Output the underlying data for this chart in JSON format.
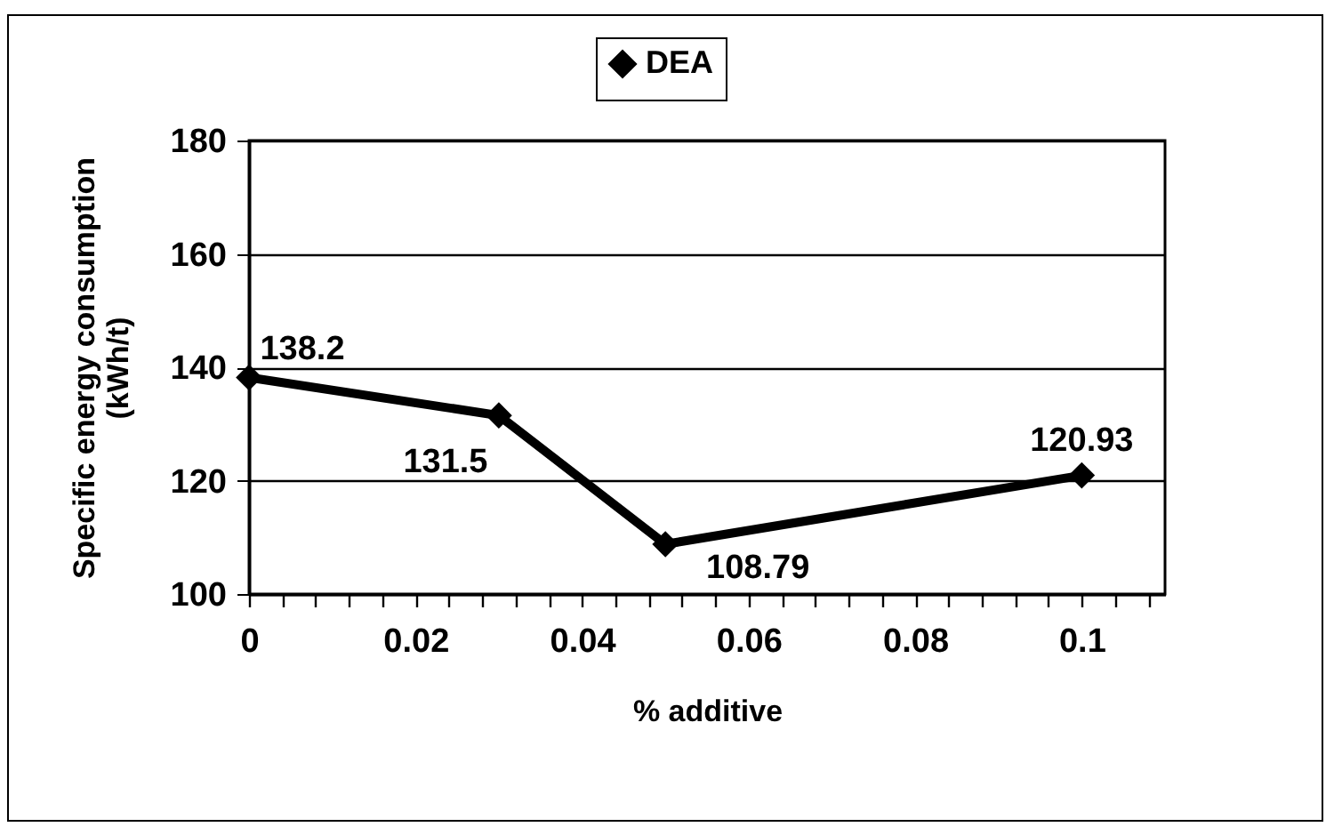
{
  "chart_data": {
    "type": "line",
    "xlabel": "% additive",
    "ylabel": "Specific energy consumption\n(kWh/t)",
    "x": [
      0,
      0.03,
      0.05,
      0.1
    ],
    "series": [
      {
        "name": "DEA",
        "color": "#000000",
        "values": [
          138.2,
          131.5,
          108.79,
          120.93
        ]
      }
    ],
    "xlim": [
      0,
      0.11
    ],
    "xticks": [
      0,
      {
        "value": 0.004,
        "label": null
      },
      {
        "value": 0.008,
        "label": null
      },
      {
        "value": 0.012,
        "label": null
      },
      {
        "value": 0.016,
        "label": null
      },
      0.02,
      {
        "value": 0.024,
        "label": null
      },
      {
        "value": 0.028,
        "label": null
      },
      {
        "value": 0.032,
        "label": null
      },
      {
        "value": 0.036,
        "label": null
      },
      0.04,
      {
        "value": 0.044,
        "label": null
      },
      {
        "value": 0.048,
        "label": null
      },
      {
        "value": 0.052,
        "label": null
      },
      {
        "value": 0.056,
        "label": null
      },
      0.06,
      {
        "value": 0.064,
        "label": null
      },
      {
        "value": 0.068,
        "label": null
      },
      {
        "value": 0.072,
        "label": null
      },
      {
        "value": 0.076,
        "label": null
      },
      0.08,
      {
        "value": 0.084,
        "label": null
      },
      {
        "value": 0.088,
        "label": null
      },
      {
        "value": 0.092,
        "label": null
      },
      {
        "value": 0.096,
        "label": null
      },
      0.1,
      {
        "value": 0.104,
        "label": null
      },
      {
        "value": 0.108,
        "label": null
      }
    ],
    "ylim": [
      100,
      180
    ],
    "yticks": [
      100,
      120,
      140,
      160,
      180
    ],
    "grid": "y",
    "legend": "top",
    "marker": "diamond",
    "line_style": "solid",
    "data_labels": true
  }
}
